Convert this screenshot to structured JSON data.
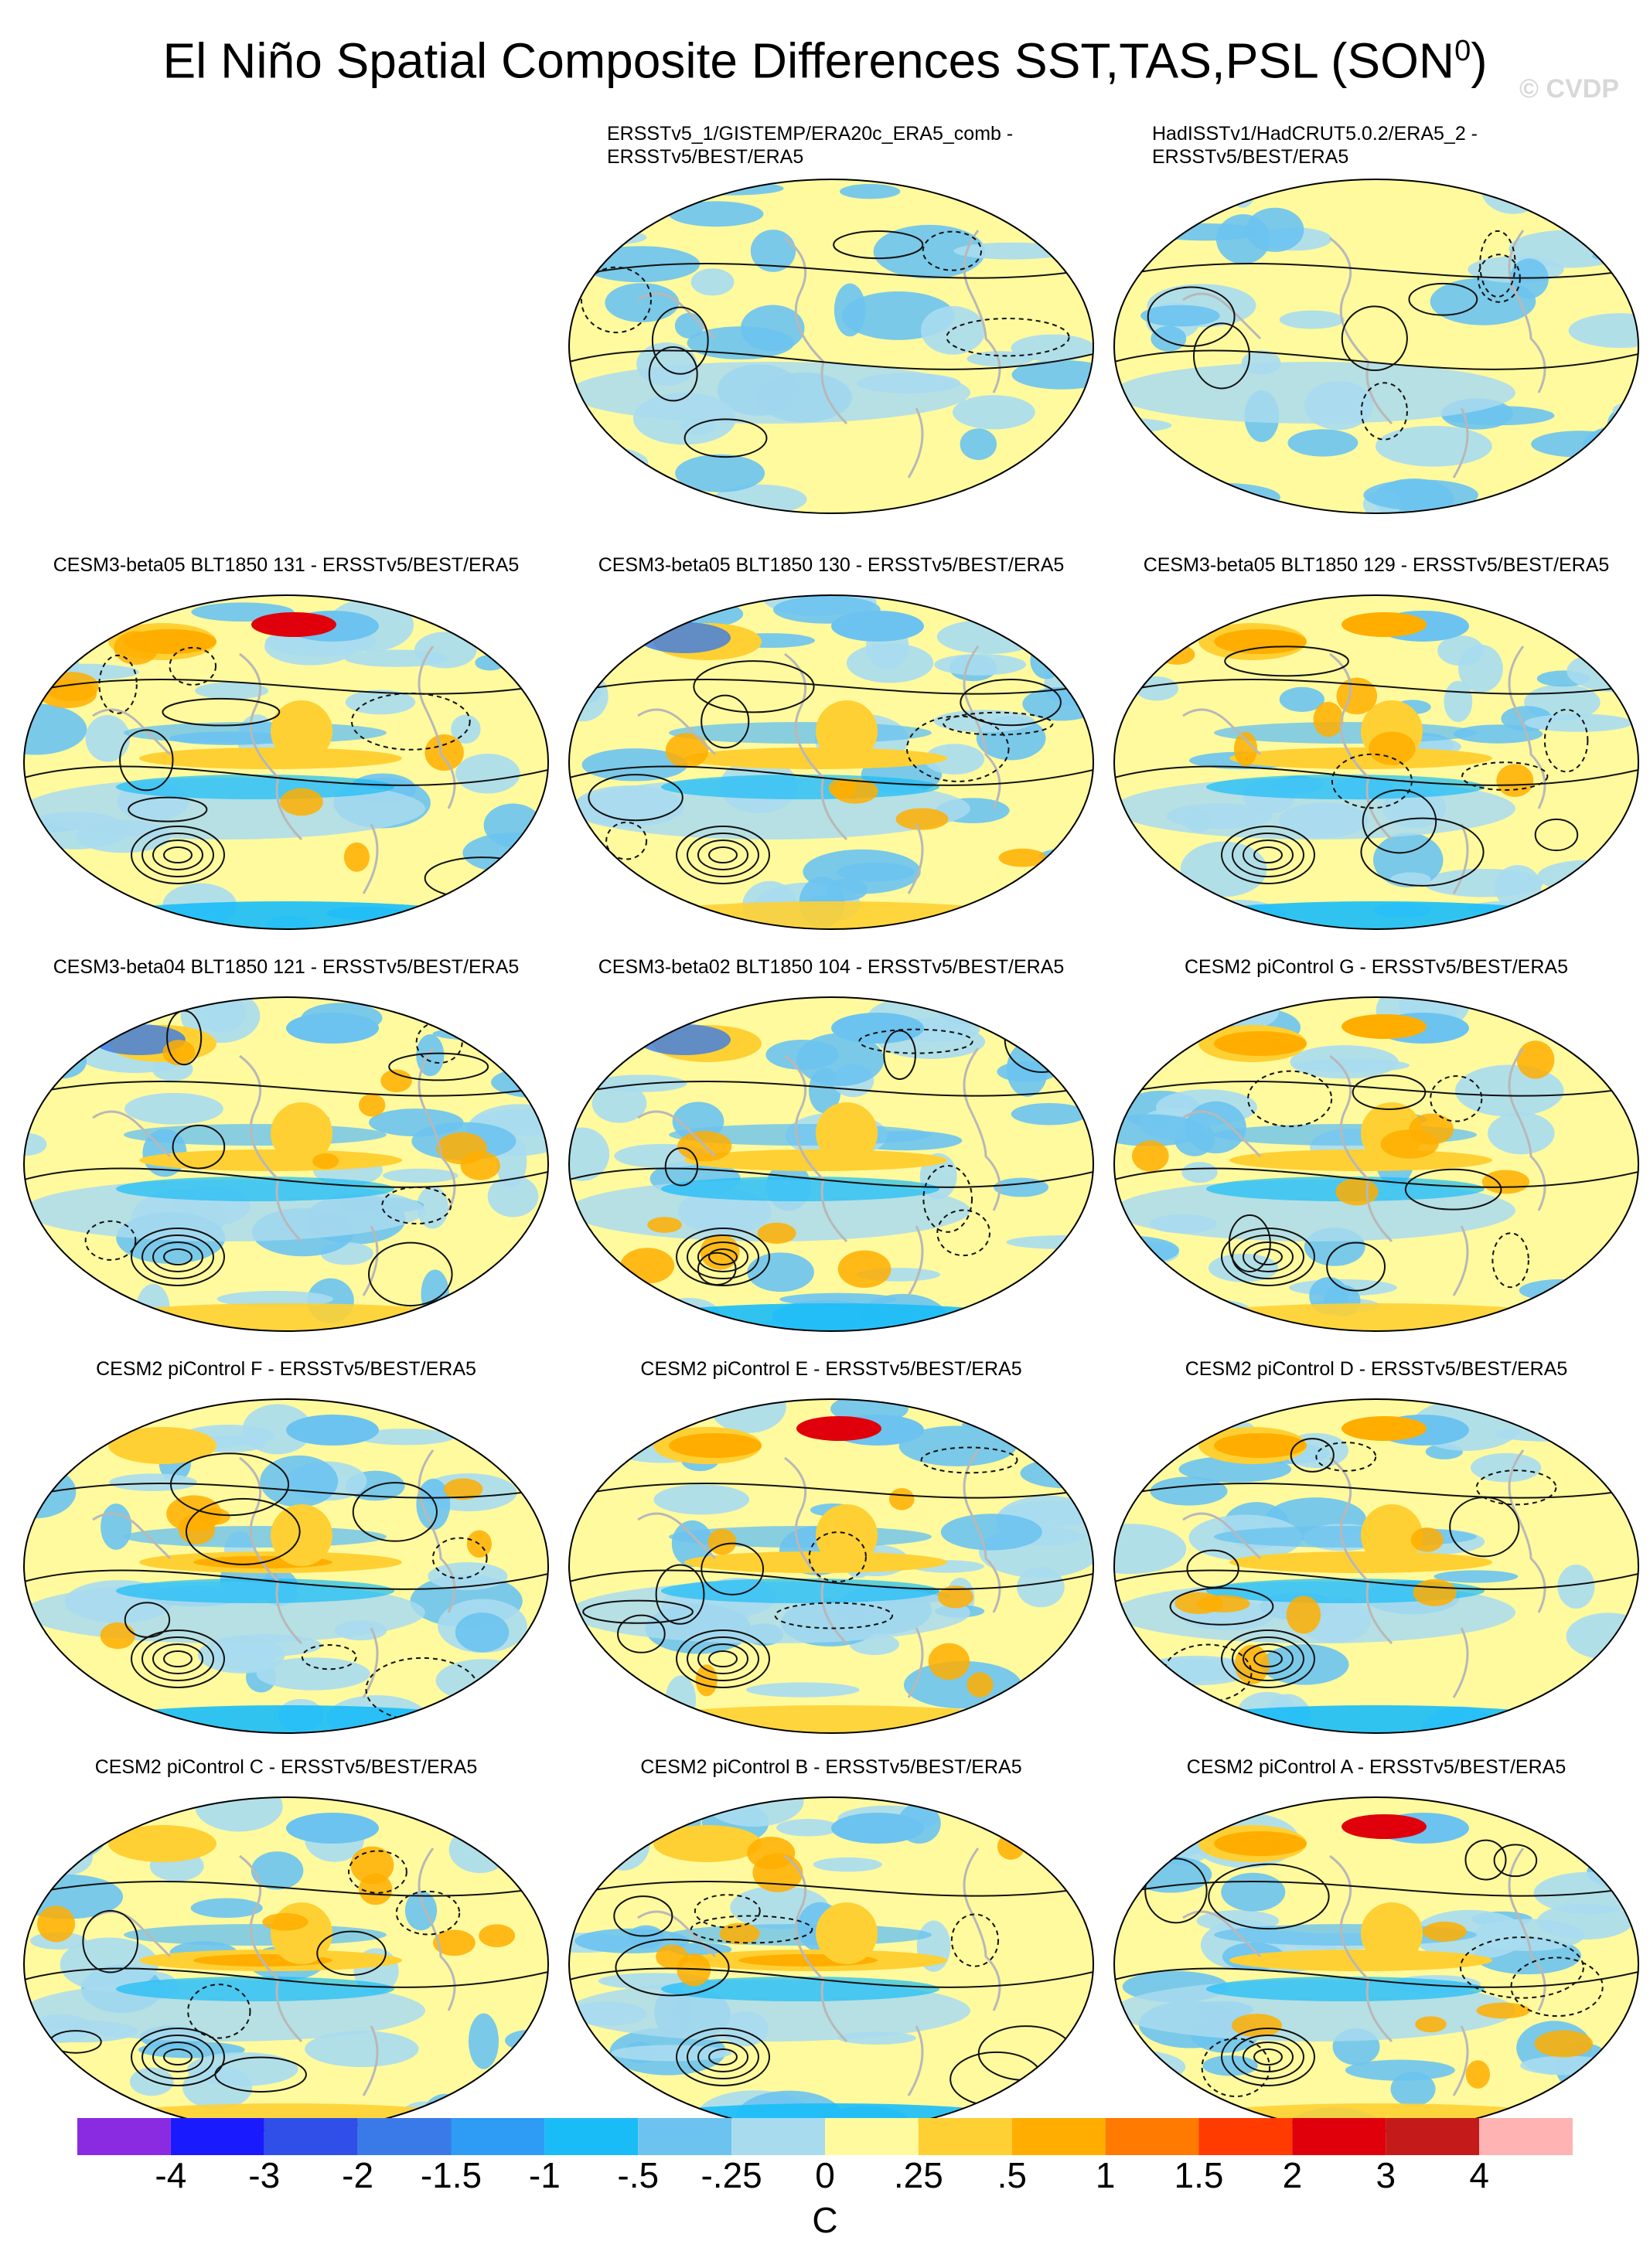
{
  "figure": {
    "title": "El Niño Spatial Composite Differences SST,TAS,PSL (SON",
    "title_superscript": "0",
    "title_close": ")",
    "watermark": "© CVDP"
  },
  "panels": [
    {
      "id": "p01",
      "row": 0,
      "col": 1,
      "title": "ERSSTv5_1/GISTEMP/ERA20c_ERA5_comb -",
      "title_line2": "ERSSTv5/BEST/ERA5",
      "pattern": "obs-a"
    },
    {
      "id": "p02",
      "row": 0,
      "col": 2,
      "title": "HadISSTv1/HadCRUT5.0.2/ERA5_2 -",
      "title_line2": "ERSSTv5/BEST/ERA5",
      "pattern": "obs-b"
    },
    {
      "id": "p03",
      "row": 1,
      "col": 0,
      "title": "CESM3-beta05 BLT1850 131 - ERSSTv5/BEST/ERA5",
      "pattern": "strong-warm-n"
    },
    {
      "id": "p04",
      "row": 1,
      "col": 1,
      "title": "CESM3-beta05 BLT1850 130 - ERSSTv5/BEST/ERA5",
      "pattern": "cool-n"
    },
    {
      "id": "p05",
      "row": 1,
      "col": 2,
      "title": "CESM3-beta05 BLT1850 129 - ERSSTv5/BEST/ERA5",
      "pattern": "warm-n"
    },
    {
      "id": "p06",
      "row": 2,
      "col": 0,
      "title": "CESM3-beta04 BLT1850 121 - ERSSTv5/BEST/ERA5",
      "pattern": "mixed"
    },
    {
      "id": "p07",
      "row": 2,
      "col": 1,
      "title": "CESM3-beta02 BLT1850 104 - ERSSTv5/BEST/ERA5",
      "pattern": "mixed"
    },
    {
      "id": "p08",
      "row": 2,
      "col": 2,
      "title": "CESM2 piControl G - ERSSTv5/BEST/ERA5",
      "pattern": "warm-n"
    },
    {
      "id": "p09",
      "row": 3,
      "col": 0,
      "title": "CESM2 piControl F - ERSSTv5/BEST/ERA5",
      "pattern": "warm-eq"
    },
    {
      "id": "p10",
      "row": 3,
      "col": 1,
      "title": "CESM2 piControl E - ERSSTv5/BEST/ERA5",
      "pattern": "strong-warm-n"
    },
    {
      "id": "p11",
      "row": 3,
      "col": 2,
      "title": "CESM2 piControl D - ERSSTv5/BEST/ERA5",
      "pattern": "warm-n"
    },
    {
      "id": "p12",
      "row": 4,
      "col": 0,
      "title": "CESM2 piControl C - ERSSTv5/BEST/ERA5",
      "pattern": "warm-eq"
    },
    {
      "id": "p13",
      "row": 4,
      "col": 1,
      "title": "CESM2 piControl B - ERSSTv5/BEST/ERA5",
      "pattern": "warm-eq"
    },
    {
      "id": "p14",
      "row": 4,
      "col": 2,
      "title": "CESM2 piControl A - ERSSTv5/BEST/ERA5",
      "pattern": "strong-warm-n"
    }
  ],
  "colorbar": {
    "colors": [
      "#8a2be2",
      "#1a1aff",
      "#2f4fe8",
      "#3a7ae8",
      "#2e9bf5",
      "#1abcf7",
      "#6cc3ef",
      "#a9dbef",
      "#fffa9e",
      "#ffd033",
      "#ffae00",
      "#ff7a00",
      "#ff3b00",
      "#e0000c",
      "#c41a1a",
      "#ffb3b3"
    ],
    "tick_labels": [
      "-4",
      "-3",
      "-2",
      "-1.5",
      "-1",
      "-.5",
      "-.25",
      "0",
      ".25",
      ".5",
      "1",
      "1.5",
      "2",
      "3",
      "4"
    ],
    "units": "C"
  }
}
